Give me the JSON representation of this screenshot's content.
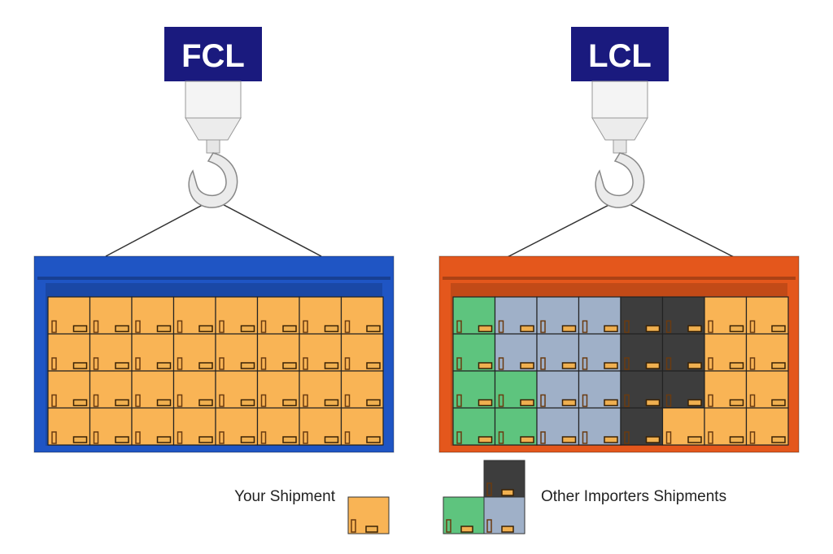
{
  "left": {
    "label": "FCL",
    "container_color": "#1f55c4",
    "grid": [
      "OOOOOOOO",
      "OOOOOOOO",
      "OOOOOOOO",
      "OOOOOOOO"
    ]
  },
  "right": {
    "label": "LCL",
    "container_color": "#e4571c",
    "grid": [
      "GBBBDDOO",
      "GBBBDDOO",
      "GGBBDDOO",
      "GGBBDOOO"
    ]
  },
  "legend": {
    "yours": "Your Shipment",
    "others": "Other Importers Shipments"
  },
  "colors": {
    "O": "#f9b455",
    "G": "#5ec47e",
    "B": "#9fb0c8",
    "D": "#3d3d3d",
    "label_bg": "#1a1a7e"
  }
}
